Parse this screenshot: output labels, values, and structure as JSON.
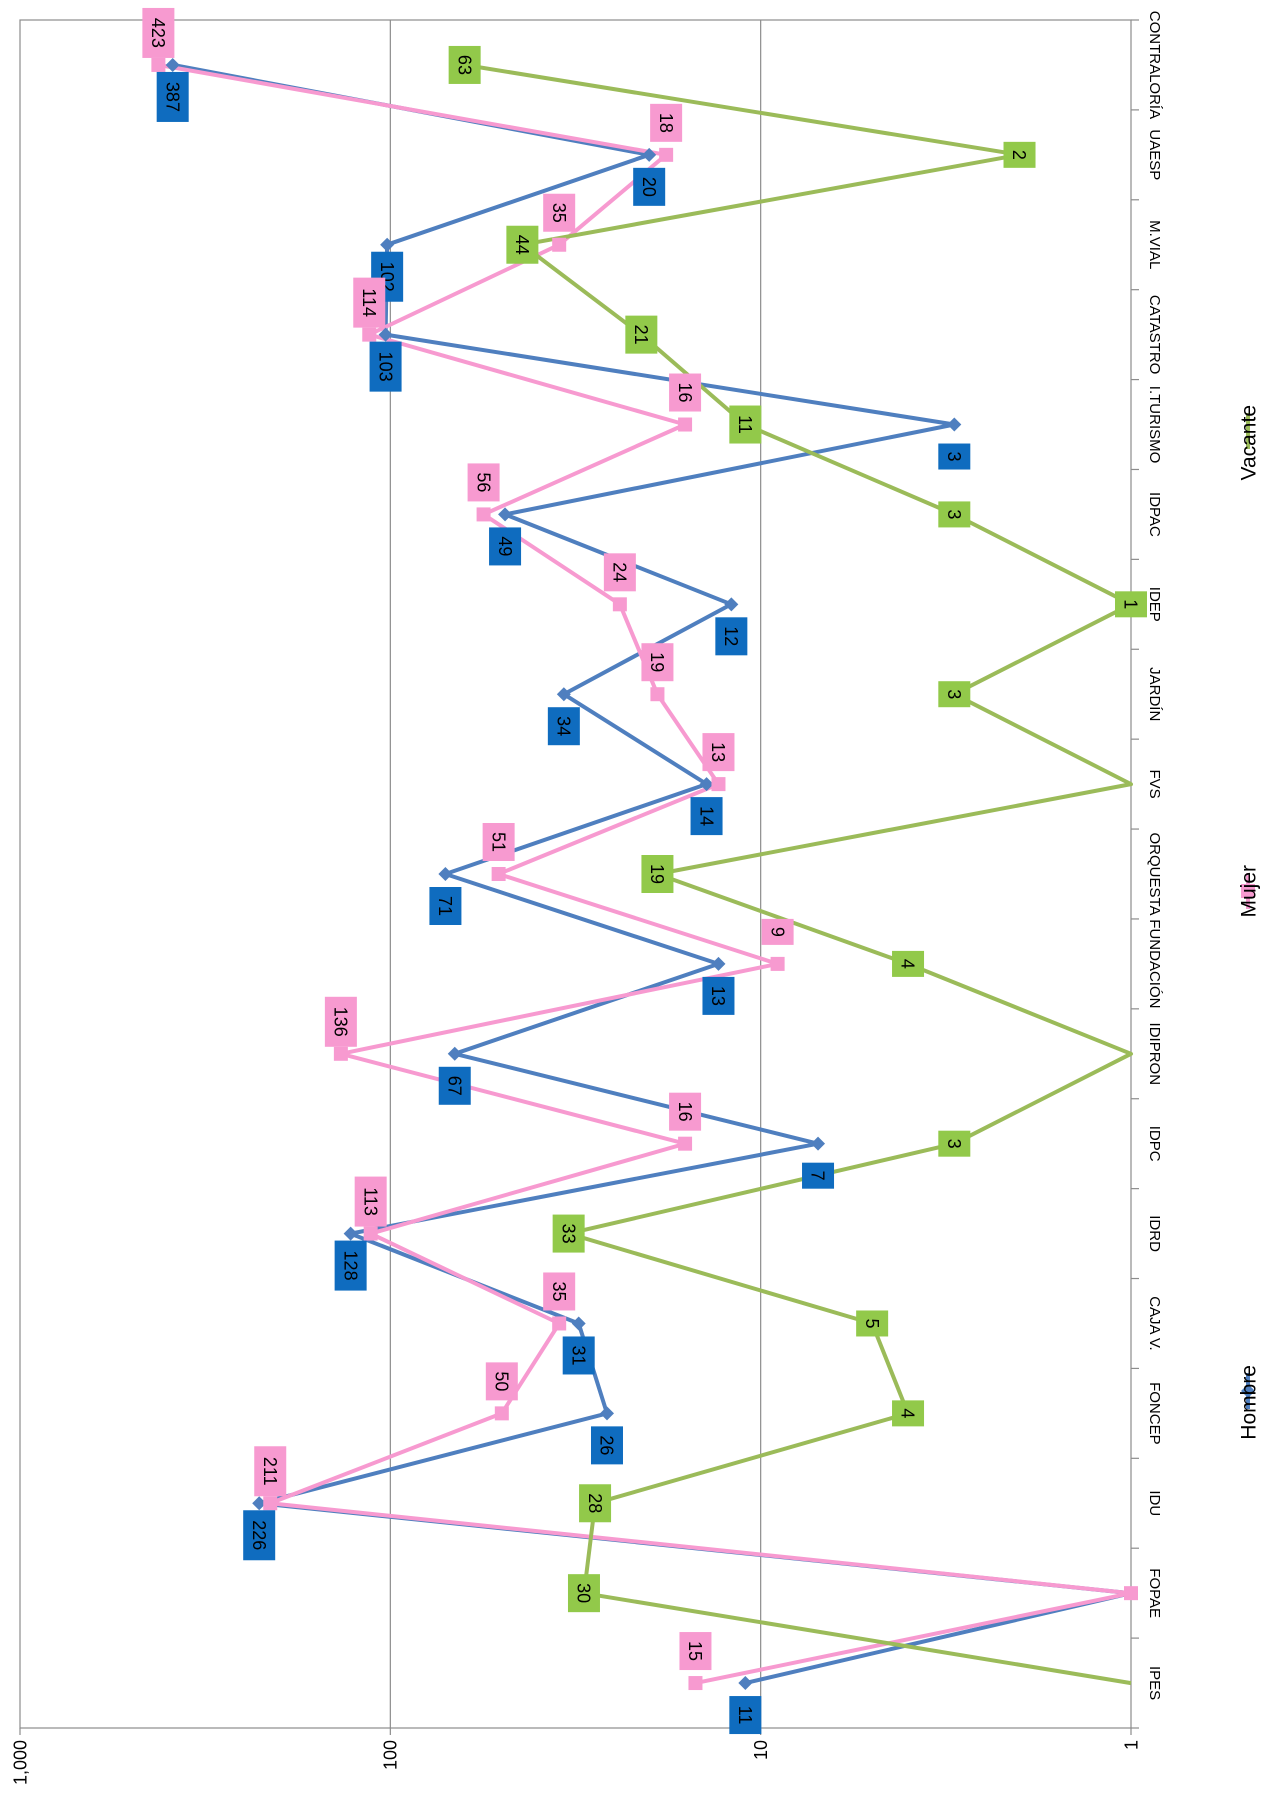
{
  "chart_data": {
    "type": "line",
    "y_scale": "log",
    "ylim": [
      1,
      1000
    ],
    "y_ticks": [
      "1,000",
      "100",
      "10",
      "1"
    ],
    "grid": true,
    "orientation": "rotated-90-clockwise",
    "legend_position": "bottom",
    "categories": [
      "IPES",
      "FOPAE",
      "IDU",
      "FONCEP",
      "CAJA V.",
      "IDRD",
      "IDPC",
      "IDIPRON",
      "FUNDACIÓN",
      "ORQUESTA",
      "FVS",
      "JARDÍN",
      "IDEP",
      "IDPAC",
      "I.TURISMO",
      "CATASTRO",
      "M.VIAL",
      "UAESP",
      "CONTRALORÍA"
    ],
    "series": [
      {
        "name": "Hombre",
        "color": "#4f7fbf",
        "label_color": "#0f6cbf",
        "marker": "diamond",
        "values": [
          11,
          1,
          226,
          26,
          31,
          128,
          7,
          67,
          13,
          71,
          14,
          34,
          12,
          49,
          3,
          103,
          102,
          20,
          387
        ]
      },
      {
        "name": "Mujer",
        "color": "#f79ad0",
        "label_color": "#f79ad0",
        "marker": "square",
        "values": [
          15,
          1,
          211,
          50,
          35,
          113,
          16,
          136,
          9,
          51,
          13,
          19,
          24,
          56,
          16,
          114,
          35,
          18,
          423
        ]
      },
      {
        "name": "Vacante",
        "color": "#9bbb59",
        "label_color": "#92c94a",
        "marker": "triangle",
        "values": [
          1,
          30,
          28,
          4,
          5,
          33,
          3,
          1,
          4,
          19,
          1,
          3,
          1,
          3,
          11,
          21,
          44,
          2,
          63
        ]
      }
    ],
    "data_labels": {
      "Hombre": [
        "11",
        null,
        "226",
        "26",
        "31",
        "128",
        "7",
        "67",
        "13",
        "71",
        "14",
        "34",
        "12",
        "49",
        "3",
        "103",
        "102",
        "20",
        "387"
      ],
      "Mujer": [
        "15",
        null,
        "211",
        "50",
        "35",
        "113",
        "16",
        "136",
        "9",
        "51",
        "13",
        "19",
        "24",
        "56",
        "16",
        "114",
        "35",
        "18",
        "423"
      ],
      "Vacante": [
        null,
        "30",
        "28",
        "4",
        "5",
        "33",
        "3",
        null,
        "4",
        "19",
        null,
        "3",
        "1",
        "3",
        "11",
        "21",
        "44",
        "2",
        "63"
      ]
    }
  }
}
